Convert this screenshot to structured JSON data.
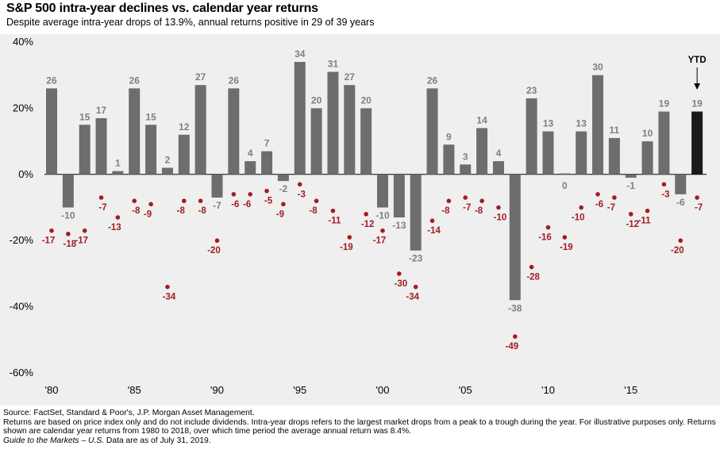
{
  "header": {
    "title": "S&P 500 intra-year declines vs. calendar year returns",
    "subtitle": "Despite average intra-year drops of 13.9%, annual returns positive in 29 of 39 years"
  },
  "chart_data": {
    "type": "bar",
    "title": "S&P 500 intra-year declines vs. calendar year returns",
    "subtitle": "Despite average intra-year drops of 13.9%, annual returns positive in 29 of 39 years",
    "x": [
      1980,
      1981,
      1982,
      1983,
      1984,
      1985,
      1986,
      1987,
      1988,
      1989,
      1990,
      1991,
      1992,
      1993,
      1994,
      1995,
      1996,
      1997,
      1998,
      1999,
      2000,
      2001,
      2002,
      2003,
      2004,
      2005,
      2006,
      2007,
      2008,
      2009,
      2010,
      2011,
      2012,
      2013,
      2014,
      2015,
      2016,
      2017,
      2018,
      2019
    ],
    "xtick_labels": [
      {
        "x": 1980,
        "label": "'80"
      },
      {
        "x": 1985,
        "label": "'85"
      },
      {
        "x": 1990,
        "label": "'90"
      },
      {
        "x": 1995,
        "label": "'95"
      },
      {
        "x": 2000,
        "label": "'00"
      },
      {
        "x": 2005,
        "label": "'05"
      },
      {
        "x": 2010,
        "label": "'10"
      },
      {
        "x": 2015,
        "label": "'15"
      }
    ],
    "yticks": [
      {
        "value": 40,
        "label": "40%"
      },
      {
        "value": 20,
        "label": "20%"
      },
      {
        "value": 0,
        "label": "0%"
      },
      {
        "value": -20,
        "label": "-20%"
      },
      {
        "value": -40,
        "label": "-40%"
      },
      {
        "value": -60,
        "label": "-60%"
      }
    ],
    "ylim": [
      -60,
      40
    ],
    "series": [
      {
        "type": "bar",
        "values": [
          26,
          -10,
          15,
          17,
          1,
          26,
          15,
          2,
          12,
          27,
          -7,
          26,
          4,
          7,
          -2,
          34,
          20,
          31,
          27,
          20,
          -10,
          -13,
          -23,
          26,
          9,
          3,
          14,
          4,
          -38,
          23,
          13,
          0,
          13,
          30,
          11,
          -1,
          10,
          19,
          -6,
          19
        ],
        "color": "#6d6d6d",
        "highlight_color": "#1a1a1a",
        "highlight_index": 39
      },
      {
        "type": "scatter",
        "values": [
          -17,
          -18,
          -17,
          -7,
          -13,
          -8,
          -9,
          -34,
          -8,
          -8,
          -20,
          -6,
          -6,
          -5,
          -9,
          -3,
          -8,
          -11,
          -19,
          -12,
          -17,
          -30,
          -34,
          -14,
          -8,
          -7,
          -8,
          -10,
          -49,
          -28,
          -16,
          -19,
          -10,
          -6,
          -7,
          -12,
          -11,
          -3,
          -20,
          -7
        ],
        "color": "#a21d21"
      }
    ],
    "annotations": [
      {
        "text": "YTD",
        "x": 2019
      }
    ],
    "grid": false
  },
  "footnotes": {
    "source": "Source: FactSet, Standard & Poor's, J.P. Morgan Asset Management.",
    "note": "Returns are based on price index only and do not include dividends. Intra-year drops refers to the largest market drops from a peak to a trough during the year. For illustrative purposes only. Returns shown are calendar year returns from 1980 to 2018, over which time period the average annual return was 8.4%.",
    "guide_italic": "Guide to the Markets – U.S.",
    "guide_rest": " Data are as of July 31, 2019."
  }
}
